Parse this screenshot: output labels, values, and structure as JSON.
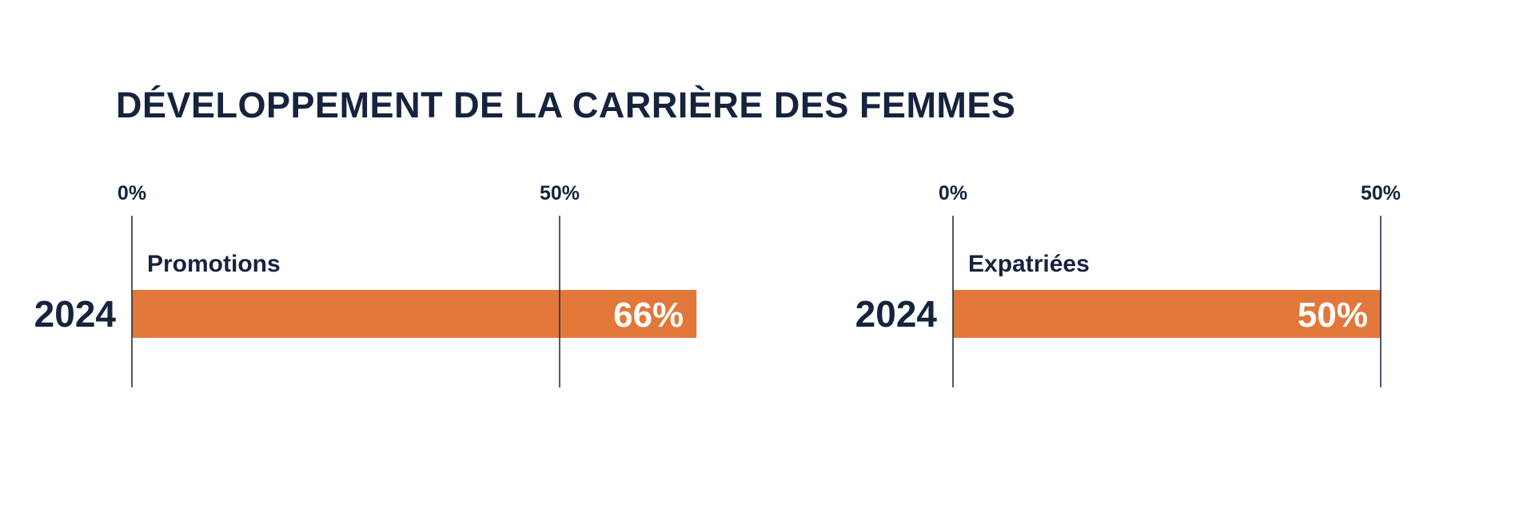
{
  "title": "DÉVELOPPEMENT DE LA CARRIÈRE DES FEMMES",
  "colors": {
    "bar": "#e2773a",
    "text": "#15233d",
    "value_text": "#ffffff",
    "background": "#ffffff"
  },
  "chart_data": [
    {
      "type": "bar",
      "orientation": "horizontal",
      "series_label": "Promotions",
      "categories": [
        "2024"
      ],
      "values": [
        66
      ],
      "value_labels": [
        "66%"
      ],
      "xticks": [
        0,
        50
      ],
      "xtick_labels": [
        "0%",
        "50%"
      ],
      "xlim": [
        0,
        50
      ],
      "grid": false,
      "legend": "none"
    },
    {
      "type": "bar",
      "orientation": "horizontal",
      "series_label": "Expatriées",
      "categories": [
        "2024"
      ],
      "values": [
        50
      ],
      "value_labels": [
        "50%"
      ],
      "xticks": [
        0,
        50
      ],
      "xtick_labels": [
        "0%",
        "50%"
      ],
      "xlim": [
        0,
        50
      ],
      "grid": false,
      "legend": "none"
    }
  ]
}
